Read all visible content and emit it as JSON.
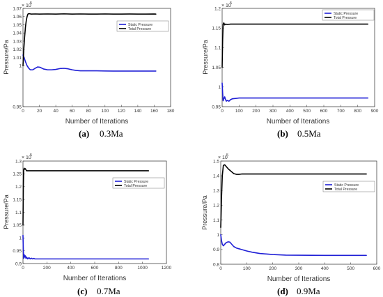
{
  "colors": {
    "static": "#1f1fd6",
    "total": "#000000",
    "axis": "#444444"
  },
  "chart_data": [
    {
      "type": "line",
      "caption_letter": "(a)",
      "caption_text": "0.3Ma",
      "xlabel": "Number of Iterations",
      "ylabel": "Pressure/Pa",
      "exponent_base": "× 10",
      "exponent_power": "5",
      "xlim": [
        0,
        180
      ],
      "ylim": [
        0.95,
        1.07
      ],
      "xticks": [
        0,
        20,
        40,
        60,
        80,
        100,
        120,
        140,
        160,
        180
      ],
      "yticks": [
        0.95,
        1,
        1.01,
        1.02,
        1.03,
        1.04,
        1.05,
        1.06,
        1.07
      ],
      "ytick_labels": [
        "0.95",
        "1",
        "1.01",
        "1.02",
        "1.03",
        "1.04",
        "1.05",
        "1.06",
        "1.07"
      ],
      "legend_position": "top-right",
      "series": [
        {
          "name": "Static Pressure",
          "color": "#1f1fd6",
          "x": [
            0,
            1,
            3,
            5,
            7,
            9,
            12,
            15,
            18,
            21,
            25,
            30,
            35,
            40,
            45,
            50,
            55,
            60,
            65,
            70,
            75,
            80,
            90,
            100,
            110,
            120,
            130,
            140,
            150,
            160,
            162
          ],
          "y": [
            1.013,
            1.011,
            1.005,
            1.0,
            0.997,
            0.995,
            0.995,
            0.997,
            0.9985,
            0.998,
            0.996,
            0.995,
            0.995,
            0.9955,
            0.9965,
            0.9968,
            0.9962,
            0.995,
            0.9942,
            0.9938,
            0.9938,
            0.9938,
            0.9938,
            0.9936,
            0.9935,
            0.9935,
            0.9935,
            0.9935,
            0.9935,
            0.9935,
            0.9935
          ]
        },
        {
          "name": "Total Pressure",
          "color": "#000000",
          "x": [
            0,
            1,
            2,
            3,
            4,
            5,
            6,
            7,
            8,
            10,
            15,
            20,
            30,
            40,
            50,
            60,
            70,
            80,
            90,
            100,
            110,
            120,
            130,
            140,
            150,
            160,
            162
          ],
          "y": [
            1.0,
            1.02,
            1.035,
            1.047,
            1.055,
            1.06,
            1.063,
            1.0635,
            1.0635,
            1.063,
            1.0632,
            1.063,
            1.0632,
            1.063,
            1.0633,
            1.063,
            1.0632,
            1.063,
            1.063,
            1.0632,
            1.063,
            1.063,
            1.0631,
            1.063,
            1.063,
            1.0631,
            1.063
          ]
        }
      ]
    },
    {
      "type": "line",
      "caption_letter": "(b)",
      "caption_text": "0.5Ma",
      "xlabel": "Number of Iterations",
      "ylabel": "Pressure/Pa",
      "exponent_base": "× 10",
      "exponent_power": "5",
      "xlim": [
        0,
        900
      ],
      "ylim": [
        0.95,
        1.2
      ],
      "xticks": [
        0,
        100,
        200,
        300,
        400,
        500,
        600,
        700,
        800,
        900
      ],
      "yticks": [
        0.95,
        1,
        1.05,
        1.1,
        1.15,
        1.2
      ],
      "ytick_labels": [
        "0.95",
        "1",
        "1.05",
        "1.1",
        "1.15",
        "1.2"
      ],
      "legend_position": "top-right",
      "series": [
        {
          "name": "Static Pressure",
          "color": "#1f1fd6",
          "x": [
            0,
            3,
            6,
            10,
            15,
            20,
            25,
            30,
            40,
            50,
            60,
            80,
            100,
            150,
            200,
            300,
            400,
            500,
            600,
            700,
            800,
            860
          ],
          "y": [
            1.01,
            0.985,
            0.965,
            0.97,
            0.975,
            0.968,
            0.964,
            0.966,
            0.964,
            0.968,
            0.97,
            0.971,
            0.972,
            0.972,
            0.972,
            0.972,
            0.972,
            0.972,
            0.972,
            0.972,
            0.972,
            0.972
          ]
        },
        {
          "name": "Total Pressure",
          "color": "#000000",
          "x": [
            0,
            3,
            6,
            10,
            15,
            20,
            30,
            50,
            100,
            200,
            300,
            400,
            500,
            600,
            700,
            800,
            860
          ],
          "y": [
            1.05,
            1.12,
            1.16,
            1.163,
            1.158,
            1.16,
            1.159,
            1.16,
            1.16,
            1.16,
            1.16,
            1.16,
            1.16,
            1.16,
            1.16,
            1.16,
            1.16
          ]
        }
      ]
    },
    {
      "type": "line",
      "caption_letter": "(c)",
      "caption_text": "0.7Ma",
      "xlabel": "Number of Iterations",
      "ylabel": "Pressure/Pa",
      "exponent_base": "× 10",
      "exponent_power": "5",
      "xlim": [
        0,
        1200
      ],
      "ylim": [
        0.9,
        1.3
      ],
      "xticks": [
        0,
        200,
        400,
        600,
        800,
        1000,
        1200
      ],
      "yticks": [
        0.9,
        0.95,
        1,
        1.05,
        1.1,
        1.15,
        1.2,
        1.25,
        1.3
      ],
      "ytick_labels": [
        "0.9",
        "0.95",
        "1",
        "1.05",
        "1.1",
        "1.15",
        "1.2",
        "1.25",
        "1.3"
      ],
      "legend_position": "top-right",
      "series": [
        {
          "name": "Static Pressure",
          "color": "#1f1fd6",
          "x": [
            0,
            3,
            6,
            10,
            15,
            20,
            25,
            30,
            40,
            50,
            60,
            70,
            80,
            90,
            100,
            150,
            200,
            400,
            600,
            800,
            1000,
            1050
          ],
          "y": [
            1.01,
            0.95,
            0.92,
            0.935,
            0.925,
            0.93,
            0.92,
            0.925,
            0.918,
            0.923,
            0.918,
            0.921,
            0.918,
            0.92,
            0.918,
            0.918,
            0.918,
            0.918,
            0.918,
            0.918,
            0.918,
            0.918
          ]
        },
        {
          "name": "Total Pressure",
          "color": "#000000",
          "x": [
            0,
            3,
            6,
            10,
            15,
            20,
            30,
            50,
            100,
            200,
            400,
            600,
            800,
            1000,
            1050
          ],
          "y": [
            1.05,
            1.2,
            1.265,
            1.272,
            1.268,
            1.27,
            1.262,
            1.262,
            1.262,
            1.262,
            1.262,
            1.262,
            1.262,
            1.262,
            1.262
          ]
        }
      ]
    },
    {
      "type": "line",
      "caption_letter": "(d)",
      "caption_text": "0.9Ma",
      "xlabel": "Number of Iterations",
      "ylabel": "Pressure/Pa",
      "exponent_base": "× 10",
      "exponent_power": "5",
      "xlim": [
        0,
        600
      ],
      "ylim": [
        0.8,
        1.5
      ],
      "xticks": [
        0,
        100,
        200,
        300,
        400,
        500,
        600
      ],
      "yticks": [
        0.8,
        0.9,
        1,
        1.1,
        1.2,
        1.3,
        1.4,
        1.5
      ],
      "ytick_labels": [
        "0.8",
        "0.9",
        "1",
        "1.1",
        "1.2",
        "1.3",
        "1.4",
        "1.5"
      ],
      "legend_position": "top-right",
      "series": [
        {
          "name": "Static Pressure",
          "color": "#1f1fd6",
          "x": [
            0,
            3,
            6,
            10,
            15,
            20,
            25,
            30,
            35,
            40,
            50,
            60,
            70,
            80,
            100,
            120,
            150,
            200,
            250,
            300,
            400,
            500,
            560
          ],
          "y": [
            1.0,
            0.96,
            0.935,
            0.925,
            0.935,
            0.945,
            0.95,
            0.952,
            0.95,
            0.94,
            0.92,
            0.91,
            0.905,
            0.9,
            0.89,
            0.882,
            0.873,
            0.866,
            0.862,
            0.861,
            0.86,
            0.86,
            0.86
          ]
        },
        {
          "name": "Total Pressure",
          "color": "#000000",
          "x": [
            0,
            3,
            6,
            10,
            15,
            20,
            25,
            30,
            40,
            50,
            60,
            70,
            80,
            100,
            150,
            200,
            300,
            400,
            500,
            560
          ],
          "y": [
            1.05,
            1.25,
            1.4,
            1.47,
            1.475,
            1.465,
            1.455,
            1.445,
            1.43,
            1.415,
            1.41,
            1.41,
            1.412,
            1.412,
            1.412,
            1.412,
            1.412,
            1.412,
            1.412,
            1.412
          ]
        }
      ]
    }
  ]
}
